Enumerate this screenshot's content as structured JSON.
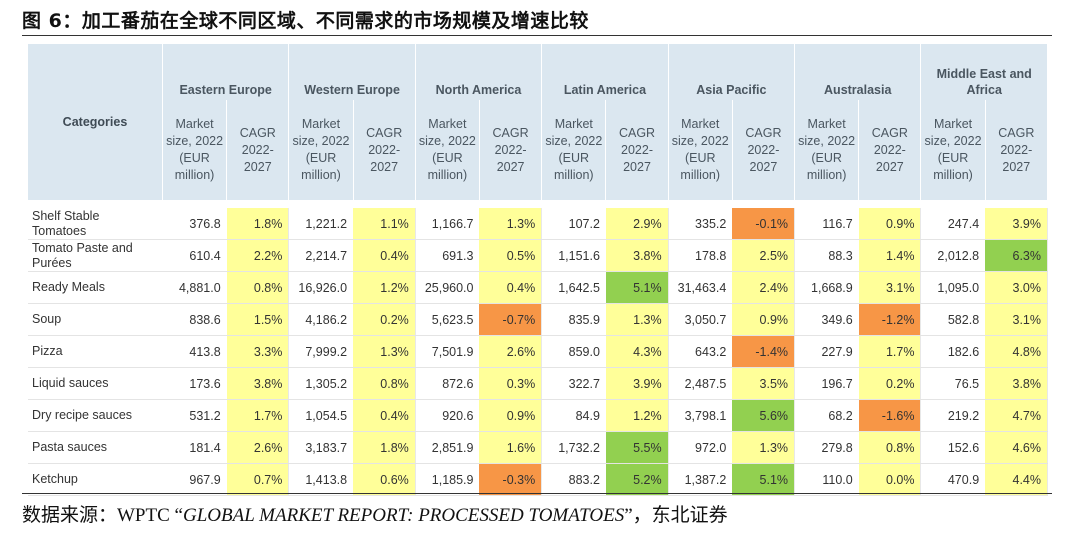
{
  "figure": {
    "title": "图 6：加工番茄在全球不同区域、不同需求的市场规模及增速比较",
    "source_prefix": "数据来源：WPTC “",
    "source_title": "GLOBAL MARKET REPORT: PROCESSED TOMATOES",
    "source_suffix": "”，东北证券"
  },
  "table": {
    "categories_header": "Categories",
    "subheaders": {
      "size": [
        "Market",
        "size, 2022",
        "(EUR",
        "million)"
      ],
      "cagr": [
        "CAGR",
        "2022-",
        "2027"
      ]
    },
    "regions": [
      {
        "name": "Eastern Europe"
      },
      {
        "name": "Western Europe"
      },
      {
        "name": "North America"
      },
      {
        "name": "Latin America"
      },
      {
        "name": "Asia Pacific"
      },
      {
        "name": "Australasia"
      },
      {
        "name_lines": [
          "Middle East and",
          "Africa"
        ]
      }
    ],
    "rows": [
      {
        "category": "Shelf Stable Tomatoes",
        "cells": [
          {
            "size": "376.8",
            "cagr": "1.8%",
            "color": "yellow"
          },
          {
            "size": "1,221.2",
            "cagr": "1.1%",
            "color": "yellow"
          },
          {
            "size": "1,166.7",
            "cagr": "1.3%",
            "color": "yellow"
          },
          {
            "size": "107.2",
            "cagr": "2.9%",
            "color": "yellow"
          },
          {
            "size": "335.2",
            "cagr": "-0.1%",
            "color": "orange"
          },
          {
            "size": "116.7",
            "cagr": "0.9%",
            "color": "yellow"
          },
          {
            "size": "247.4",
            "cagr": "3.9%",
            "color": "yellow"
          }
        ]
      },
      {
        "category": "Tomato Paste and Purées",
        "cells": [
          {
            "size": "610.4",
            "cagr": "2.2%",
            "color": "yellow"
          },
          {
            "size": "2,214.7",
            "cagr": "0.4%",
            "color": "yellow"
          },
          {
            "size": "691.3",
            "cagr": "0.5%",
            "color": "yellow"
          },
          {
            "size": "1,151.6",
            "cagr": "3.8%",
            "color": "yellow"
          },
          {
            "size": "178.8",
            "cagr": "2.5%",
            "color": "yellow"
          },
          {
            "size": "88.3",
            "cagr": "1.4%",
            "color": "yellow"
          },
          {
            "size": "2,012.8",
            "cagr": "6.3%",
            "color": "green"
          }
        ]
      },
      {
        "category": "Ready Meals",
        "cells": [
          {
            "size": "4,881.0",
            "cagr": "0.8%",
            "color": "yellow"
          },
          {
            "size": "16,926.0",
            "cagr": "1.2%",
            "color": "yellow"
          },
          {
            "size": "25,960.0",
            "cagr": "0.4%",
            "color": "yellow"
          },
          {
            "size": "1,642.5",
            "cagr": "5.1%",
            "color": "green"
          },
          {
            "size": "31,463.4",
            "cagr": "2.4%",
            "color": "yellow"
          },
          {
            "size": "1,668.9",
            "cagr": "3.1%",
            "color": "yellow"
          },
          {
            "size": "1,095.0",
            "cagr": "3.0%",
            "color": "yellow"
          }
        ]
      },
      {
        "category": "Soup",
        "cells": [
          {
            "size": "838.6",
            "cagr": "1.5%",
            "color": "yellow"
          },
          {
            "size": "4,186.2",
            "cagr": "0.2%",
            "color": "yellow"
          },
          {
            "size": "5,623.5",
            "cagr": "-0.7%",
            "color": "orange"
          },
          {
            "size": "835.9",
            "cagr": "1.3%",
            "color": "yellow"
          },
          {
            "size": "3,050.7",
            "cagr": "0.9%",
            "color": "yellow"
          },
          {
            "size": "349.6",
            "cagr": "-1.2%",
            "color": "orange"
          },
          {
            "size": "582.8",
            "cagr": "3.1%",
            "color": "yellow"
          }
        ]
      },
      {
        "category": "Pizza",
        "cells": [
          {
            "size": "413.8",
            "cagr": "3.3%",
            "color": "yellow"
          },
          {
            "size": "7,999.2",
            "cagr": "1.3%",
            "color": "yellow"
          },
          {
            "size": "7,501.9",
            "cagr": "2.6%",
            "color": "yellow"
          },
          {
            "size": "859.0",
            "cagr": "4.3%",
            "color": "yellow"
          },
          {
            "size": "643.2",
            "cagr": "-1.4%",
            "color": "orange"
          },
          {
            "size": "227.9",
            "cagr": "1.7%",
            "color": "yellow"
          },
          {
            "size": "182.6",
            "cagr": "4.8%",
            "color": "yellow"
          }
        ]
      },
      {
        "category": "Liquid sauces",
        "cells": [
          {
            "size": "173.6",
            "cagr": "3.8%",
            "color": "yellow"
          },
          {
            "size": "1,305.2",
            "cagr": "0.8%",
            "color": "yellow"
          },
          {
            "size": "872.6",
            "cagr": "0.3%",
            "color": "yellow"
          },
          {
            "size": "322.7",
            "cagr": "3.9%",
            "color": "yellow"
          },
          {
            "size": "2,487.5",
            "cagr": "3.5%",
            "color": "yellow"
          },
          {
            "size": "196.7",
            "cagr": "0.2%",
            "color": "yellow"
          },
          {
            "size": "76.5",
            "cagr": "3.8%",
            "color": "yellow"
          }
        ]
      },
      {
        "category": "Dry recipe sauces",
        "cells": [
          {
            "size": "531.2",
            "cagr": "1.7%",
            "color": "yellow"
          },
          {
            "size": "1,054.5",
            "cagr": "0.4%",
            "color": "yellow"
          },
          {
            "size": "920.6",
            "cagr": "0.9%",
            "color": "yellow"
          },
          {
            "size": "84.9",
            "cagr": "1.2%",
            "color": "yellow"
          },
          {
            "size": "3,798.1",
            "cagr": "5.6%",
            "color": "green"
          },
          {
            "size": "68.2",
            "cagr": "-1.6%",
            "color": "orange"
          },
          {
            "size": "219.2",
            "cagr": "4.7%",
            "color": "yellow"
          }
        ]
      },
      {
        "category": "Pasta sauces",
        "cells": [
          {
            "size": "181.4",
            "cagr": "2.6%",
            "color": "yellow"
          },
          {
            "size": "3,183.7",
            "cagr": "1.8%",
            "color": "yellow"
          },
          {
            "size": "2,851.9",
            "cagr": "1.6%",
            "color": "yellow"
          },
          {
            "size": "1,732.2",
            "cagr": "5.5%",
            "color": "green"
          },
          {
            "size": "972.0",
            "cagr": "1.3%",
            "color": "yellow"
          },
          {
            "size": "279.8",
            "cagr": "0.8%",
            "color": "yellow"
          },
          {
            "size": "152.6",
            "cagr": "4.6%",
            "color": "yellow"
          }
        ]
      },
      {
        "category": "Ketchup",
        "cells": [
          {
            "size": "967.9",
            "cagr": "0.7%",
            "color": "yellow"
          },
          {
            "size": "1,413.8",
            "cagr": "0.6%",
            "color": "yellow"
          },
          {
            "size": "1,185.9",
            "cagr": "-0.3%",
            "color": "orange"
          },
          {
            "size": "883.2",
            "cagr": "5.2%",
            "color": "green"
          },
          {
            "size": "1,387.2",
            "cagr": "5.1%",
            "color": "green"
          },
          {
            "size": "110.0",
            "cagr": "0.0%",
            "color": "yellow"
          },
          {
            "size": "470.9",
            "cagr": "4.4%",
            "color": "yellow"
          }
        ]
      }
    ]
  },
  "colors": {
    "header_bg": "#dbe7f0",
    "yellow": "#ffff99",
    "orange": "#f79646",
    "green": "#92d050"
  }
}
